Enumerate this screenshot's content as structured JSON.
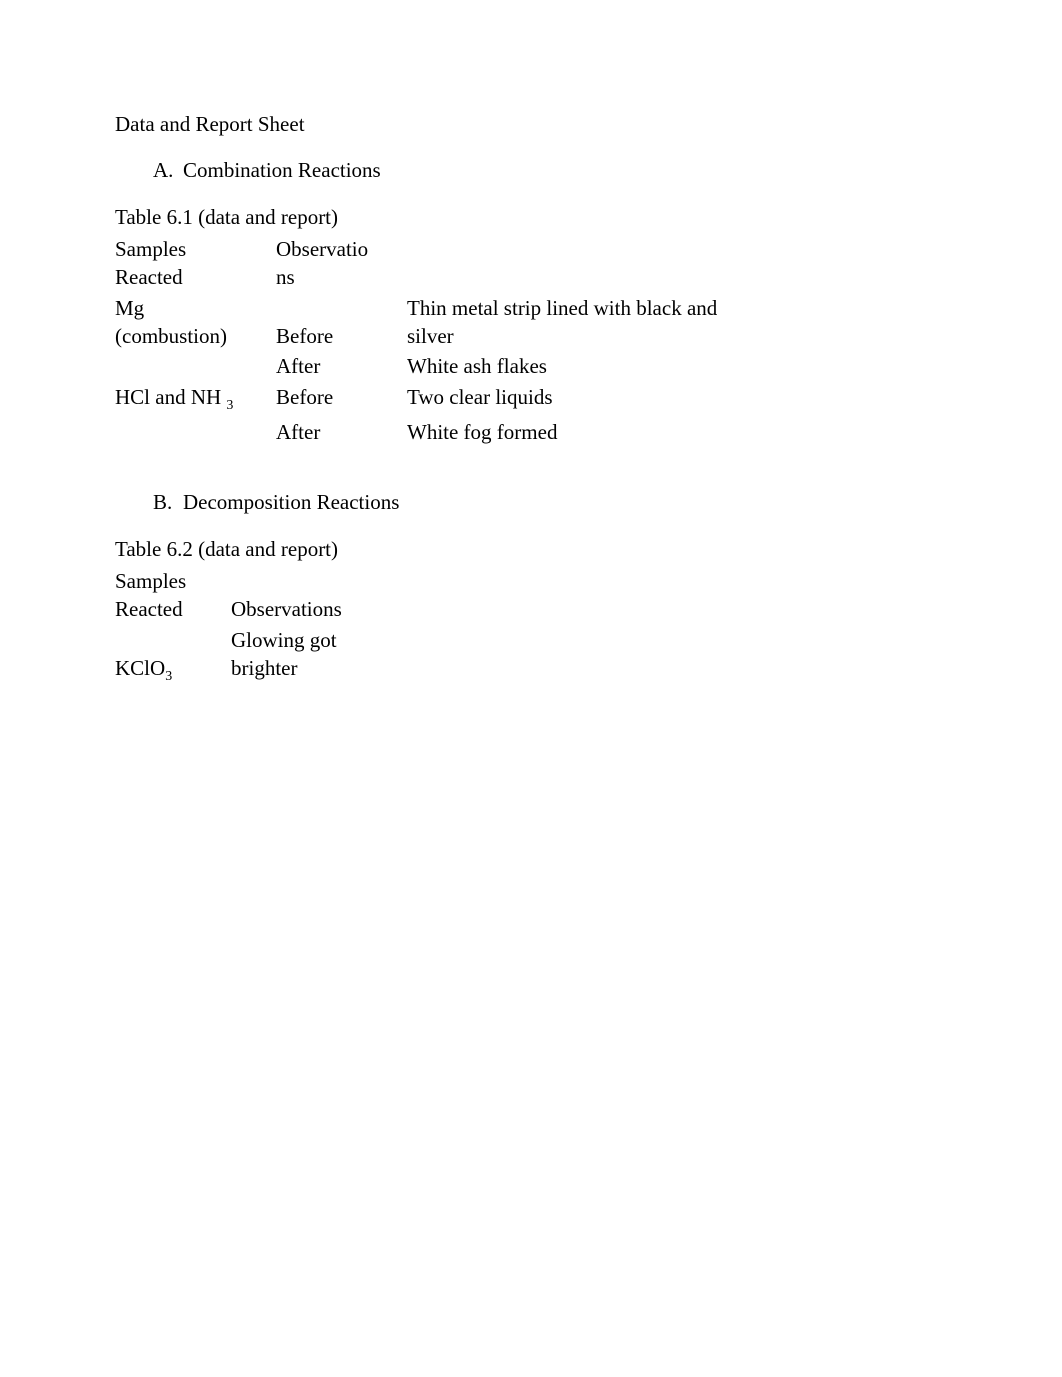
{
  "title": "Data and Report Sheet",
  "sectionA": {
    "letter": "A.",
    "heading": "Combination Reactions",
    "caption": "Table 6.1 (data and report)",
    "headers": {
      "samples_l1": "Samples",
      "samples_l2": "Reacted",
      "obs_l1": "Observatio",
      "obs_l2": "ns"
    },
    "row1": {
      "sample_l1": "Mg",
      "sample_l2": "(combustion)",
      "before_label": "Before",
      "before_desc_l1": "Thin metal strip lined with black and",
      "before_desc_l2": "silver",
      "after_label": "After",
      "after_desc": "White ash flakes"
    },
    "row2": {
      "sample_prefix": "HCl and NH",
      "sample_sub": "3",
      "before_label": "Before",
      "before_desc": "Two clear liquids",
      "after_label": "After",
      "after_desc": "White fog formed"
    }
  },
  "sectionB": {
    "letter": "B.",
    "heading": "Decomposition Reactions",
    "caption": "Table 6.2 (data and report)",
    "headers": {
      "samples_l1": "Samples",
      "samples_l2": "Reacted",
      "obs": "Observations"
    },
    "row1": {
      "sample_prefix": "KClO",
      "sample_sub": "3",
      "obs_l1": "Glowing got",
      "obs_l2": "brighter"
    }
  }
}
